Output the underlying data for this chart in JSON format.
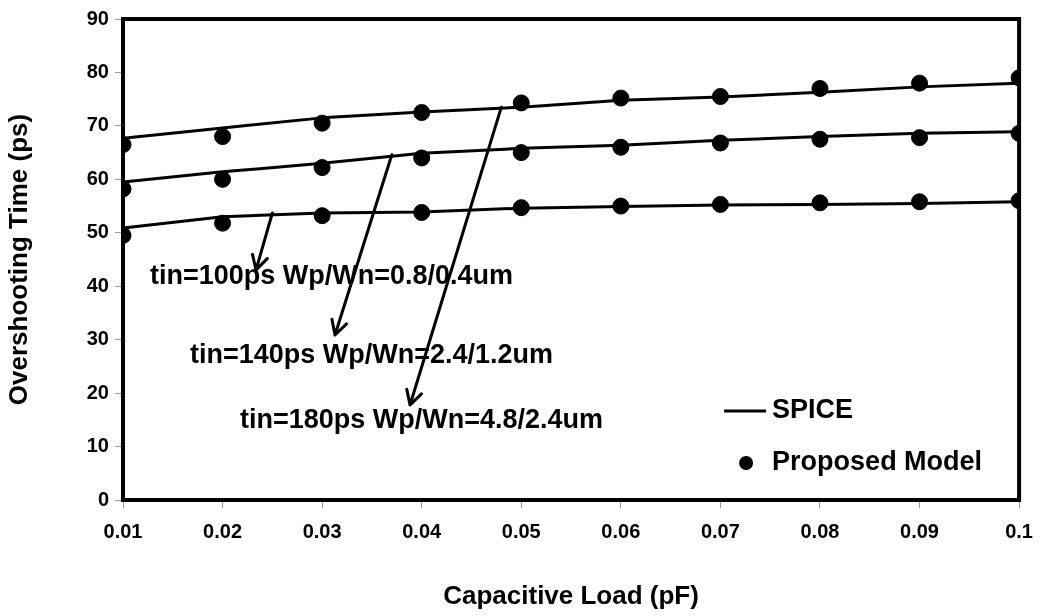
{
  "chart_data": {
    "type": "line",
    "xlabel": "Capacitive Load (pF)",
    "ylabel": "Overshooting Time (ps)",
    "x": [
      0.01,
      0.02,
      0.03,
      0.04,
      0.05,
      0.06,
      0.07,
      0.08,
      0.09,
      0.1
    ],
    "series": [
      {
        "name": "SPICE",
        "marker": "none",
        "color": "#000000",
        "values": [
          67.7,
          69.6,
          71.5,
          72.6,
          73.5,
          74.8,
          75.4,
          76.3,
          77.3,
          78.0
        ]
      },
      {
        "marker": "none",
        "color": "#000000",
        "values": [
          59.5,
          61.4,
          63.0,
          64.9,
          65.8,
          66.4,
          67.3,
          68.0,
          68.6,
          68.9
        ]
      },
      {
        "marker": "none",
        "color": "#000000",
        "values": [
          50.9,
          53.0,
          53.7,
          53.9,
          54.6,
          54.9,
          55.2,
          55.3,
          55.5,
          55.8
        ]
      },
      {
        "name": "Proposed Model",
        "type": "scatter",
        "color": "#000000",
        "values": [
          66.5,
          68.0,
          70.5,
          72.5,
          74.3,
          75.2,
          75.5,
          77.0,
          78.0,
          79.0
        ]
      },
      {
        "type": "scatter",
        "color": "#000000",
        "values": [
          58.2,
          60.0,
          62.2,
          64.0,
          65.0,
          66.0,
          66.8,
          67.5,
          67.8,
          68.6
        ]
      },
      {
        "type": "scatter",
        "color": "#000000",
        "values": [
          49.5,
          51.8,
          53.2,
          53.8,
          54.7,
          55.0,
          55.3,
          55.6,
          55.8,
          56.0
        ]
      }
    ],
    "xlim": [
      0.01,
      0.1
    ],
    "xticks": [
      0.01,
      0.02,
      0.03,
      0.04,
      0.05,
      0.06,
      0.07,
      0.08,
      0.09,
      0.1
    ],
    "ylim": [
      0,
      90
    ],
    "yticks": [
      0,
      10,
      20,
      30,
      40,
      50,
      60,
      70,
      80,
      90
    ],
    "grid": false,
    "legend": "bottom right",
    "marker": "circle",
    "line_style": "solid",
    "annotations": [
      {
        "text": "tin=100ps Wp/Wn=0.8/0.4um",
        "x": 0.025,
        "y": 53.7
      },
      {
        "text": "tin=140ps Wp/Wn=2.4/1.2um",
        "x": 0.037,
        "y": 64.6
      },
      {
        "text": "tin=180ps Wp/Wn=4.8/2.4um",
        "x": 0.048,
        "y": 73.5
      }
    ]
  }
}
